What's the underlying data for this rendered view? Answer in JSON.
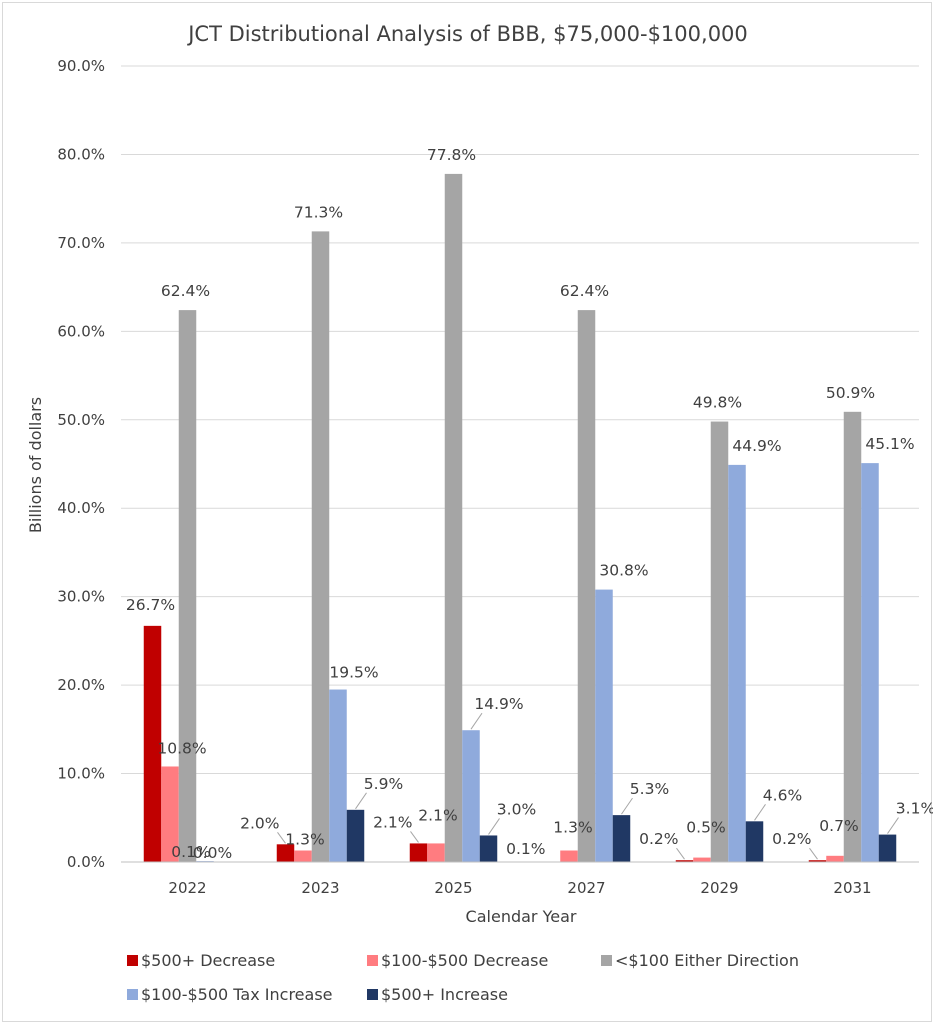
{
  "chart_data": {
    "type": "bar",
    "title": "JCT Distributional Analysis of BBB, $75,000-$100,000",
    "xlabel": "Calendar Year",
    "ylabel": "Billions of dollars",
    "ylim": [
      0,
      90
    ],
    "yticks": [
      "0.0%",
      "10.0%",
      "20.0%",
      "30.0%",
      "40.0%",
      "50.0%",
      "60.0%",
      "70.0%",
      "80.0%",
      "90.0%"
    ],
    "grid": true,
    "legend_position": "bottom",
    "categories": [
      "2022",
      "2023",
      "2025",
      "2027",
      "2029",
      "2031"
    ],
    "series": [
      {
        "name": "$500+ Decrease",
        "color": "#c00000",
        "values": [
          26.7,
          2.0,
          2.1,
          0.0,
          0.2,
          0.2
        ],
        "labels": [
          "26.7%",
          "2.0%",
          "2.1%",
          "",
          "0.2%",
          "0.2%"
        ]
      },
      {
        "name": "$100-$500 Decrease",
        "color": "#ff7c80",
        "values": [
          10.8,
          1.3,
          2.1,
          1.3,
          0.5,
          0.7
        ],
        "labels": [
          "10.8%",
          "1.3%",
          "2.1%",
          "1.3%",
          "0.5%",
          "0.7%"
        ]
      },
      {
        "name": "<$100 Either Direction",
        "color": "#a5a5a5",
        "values": [
          62.4,
          71.3,
          77.8,
          62.4,
          49.8,
          50.9
        ],
        "labels": [
          "62.4%",
          "71.3%",
          "77.8%",
          "62.4%",
          "49.8%",
          "50.9%"
        ]
      },
      {
        "name": "$100-$500 Tax Increase",
        "color": "#8faadc",
        "values": [
          0.1,
          19.5,
          14.9,
          30.8,
          44.9,
          45.1
        ],
        "labels": [
          "0.1%",
          "19.5%",
          "14.9%",
          "30.8%",
          "44.9%",
          "45.1%"
        ]
      },
      {
        "name": "$500+ Increase",
        "color": "#203864",
        "values": [
          0.0,
          5.9,
          3.0,
          5.3,
          4.6,
          3.1
        ],
        "labels": [
          "0.0%",
          "5.9%",
          "3.0%",
          "5.3%",
          "4.6%",
          "3.1%"
        ]
      }
    ],
    "extra_labels": [
      {
        "category": "2027",
        "text": "0.1%"
      }
    ]
  }
}
